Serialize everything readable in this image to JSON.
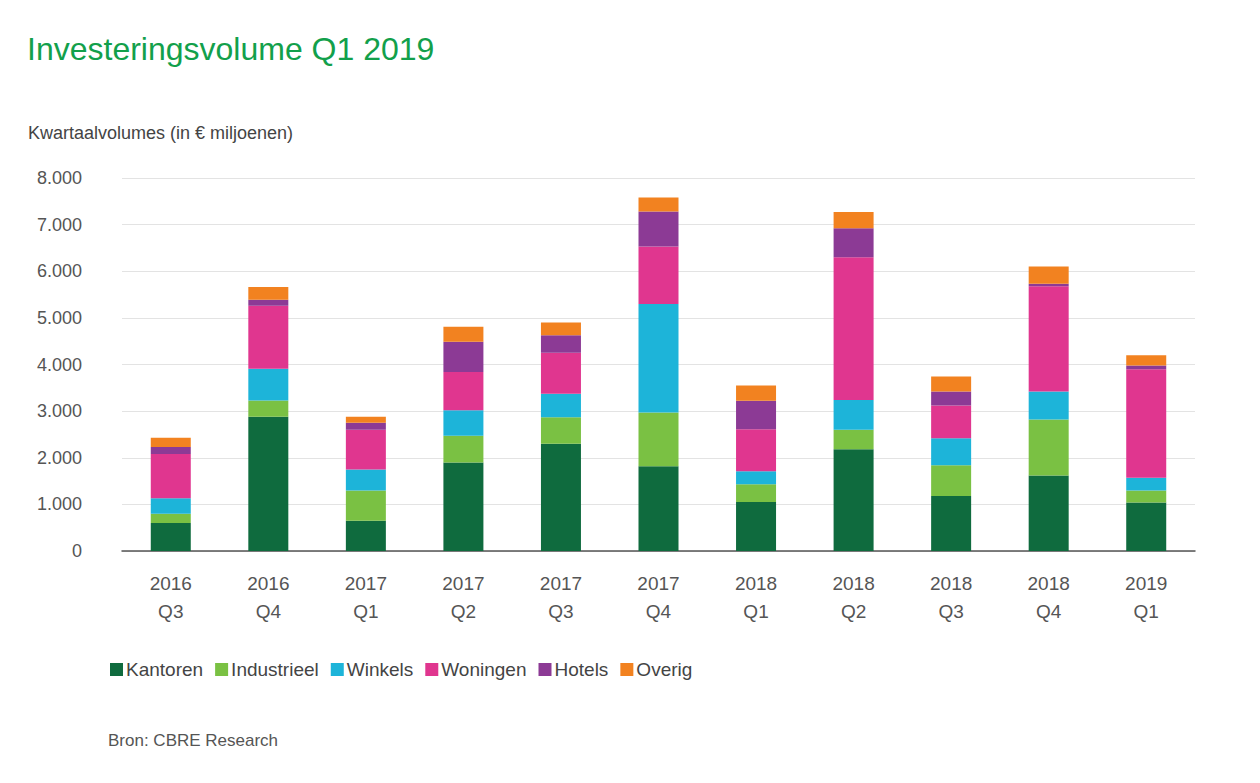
{
  "chart_data": {
    "type": "bar",
    "title": "Investeringsvolume Q1 2019",
    "ylabel": "Kwartaalvolumes (in € miljoenen)",
    "source": "Bron: CBRE Research",
    "stacked": true,
    "grid": true,
    "legend": "bottom",
    "categories": [
      "2016\nQ3",
      "2016\nQ4",
      "2017\nQ1",
      "2017\nQ2",
      "2017\nQ3",
      "2017\nQ4",
      "2018\nQ1",
      "2018\nQ2",
      "2018\nQ3",
      "2018\nQ4",
      "2019\nQ1"
    ],
    "series": [
      {
        "name": "Kantoren",
        "color": "#0f6b3e",
        "values": [
          600,
          2880,
          650,
          1900,
          2300,
          1820,
          1050,
          2180,
          1180,
          1620,
          1040
        ]
      },
      {
        "name": "Industrieel",
        "color": "#7ac143",
        "values": [
          200,
          350,
          650,
          570,
          570,
          1150,
          380,
          420,
          660,
          1200,
          260
        ]
      },
      {
        "name": "Winkels",
        "color": "#1db4d9",
        "values": [
          330,
          680,
          450,
          550,
          500,
          2330,
          280,
          640,
          580,
          600,
          270
        ]
      },
      {
        "name": "Woningen",
        "color": "#e0368f",
        "values": [
          950,
          1350,
          850,
          820,
          880,
          1230,
          900,
          3060,
          700,
          2260,
          2330
        ]
      },
      {
        "name": "Hotels",
        "color": "#8c3a95",
        "values": [
          150,
          130,
          150,
          650,
          380,
          750,
          610,
          620,
          300,
          50,
          80
        ]
      },
      {
        "name": "Overig",
        "color": "#f28220",
        "values": [
          200,
          270,
          130,
          320,
          270,
          300,
          330,
          350,
          320,
          370,
          220
        ]
      }
    ],
    "ylim": [
      0,
      8000
    ],
    "yticks": [
      0,
      {
        "value": 1000,
        "label": "1.000"
      },
      {
        "value": 2000,
        "label": "2.000"
      },
      {
        "value": 3000,
        "label": "3.000"
      },
      {
        "value": 4000,
        "label": "4.000"
      },
      {
        "value": 5000,
        "label": "5.000"
      },
      {
        "value": 6000,
        "label": "6.000"
      },
      {
        "value": 7000,
        "label": "7.000"
      },
      {
        "value": 8000,
        "label": "8.000"
      }
    ]
  }
}
